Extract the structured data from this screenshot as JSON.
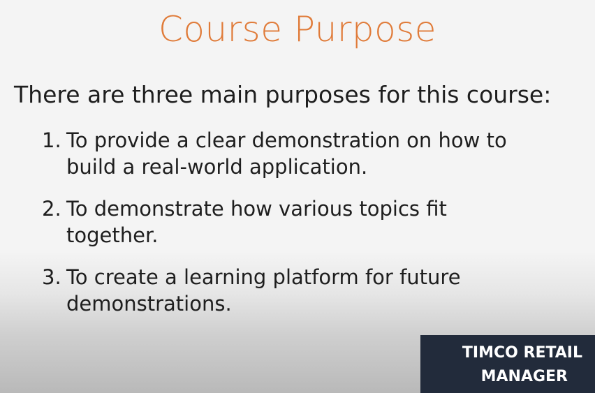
{
  "slide": {
    "title": "Course Purpose",
    "intro": "There are three main purposes for this course:",
    "purposes": [
      {
        "number": "1.",
        "text": "To provide a clear demonstration on how to build a real-world application."
      },
      {
        "number": "2.",
        "text": "To demonstrate how various topics fit together."
      },
      {
        "number": "3.",
        "text": "To create a learning platform for future demonstrations."
      }
    ]
  },
  "brand": {
    "line1": "TIMCO RETAIL",
    "line2": "MANAGER"
  },
  "colors": {
    "title": "#e07b39",
    "badge_background": "#222b3b",
    "text": "#1e1e1e"
  }
}
